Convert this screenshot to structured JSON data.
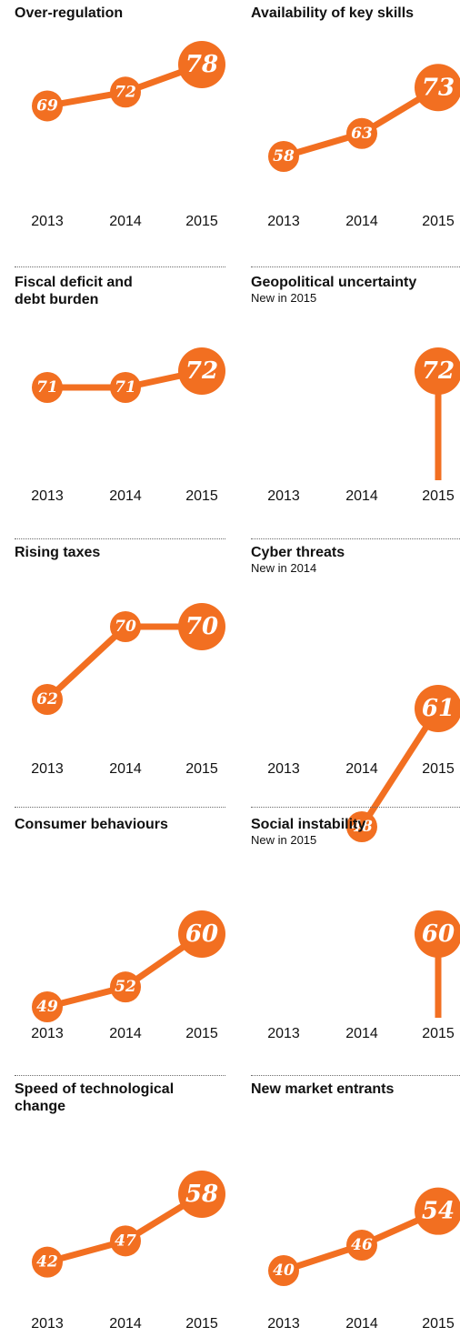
{
  "colors": {
    "accent": "#f26f21",
    "value_text": "#ffffff",
    "label_text": "#111111"
  },
  "years": [
    "2013",
    "2014",
    "2015"
  ],
  "chart_data": [
    {
      "type": "line",
      "title": "Over-regulation",
      "subtitle": "",
      "x": [
        "2013",
        "2014",
        "2015"
      ],
      "values": [
        69,
        72,
        78
      ],
      "labels": [
        "69",
        "72",
        "78"
      ]
    },
    {
      "type": "line",
      "title": "Availability of key skills",
      "subtitle": "",
      "x": [
        "2013",
        "2014",
        "2015"
      ],
      "values": [
        58,
        63,
        73
      ],
      "labels": [
        "58",
        "63",
        "73"
      ]
    },
    {
      "type": "line",
      "title": "Fiscal deficit and debt burden",
      "subtitle": "",
      "x": [
        "2013",
        "2014",
        "2015"
      ],
      "values": [
        71,
        71,
        72
      ],
      "labels": [
        "71",
        "71",
        "72"
      ]
    },
    {
      "type": "line",
      "title": "Geopolitical uncertainty",
      "subtitle": "New in 2015",
      "x": [
        "2013",
        "2014",
        "2015"
      ],
      "values": [
        null,
        null,
        72
      ],
      "labels": [
        "",
        "",
        "72"
      ]
    },
    {
      "type": "line",
      "title": "Rising taxes",
      "subtitle": "",
      "x": [
        "2013",
        "2014",
        "2015"
      ],
      "values": [
        62,
        70,
        70
      ],
      "labels": [
        "62",
        "70",
        "70"
      ]
    },
    {
      "type": "line",
      "title": "Cyber threats",
      "subtitle": "New in 2014",
      "x": [
        "2013",
        "2014",
        "2015"
      ],
      "values": [
        null,
        48,
        61
      ],
      "labels": [
        "",
        "48",
        "61"
      ]
    },
    {
      "type": "line",
      "title": "Consumer behaviours",
      "subtitle": "",
      "x": [
        "2013",
        "2014",
        "2015"
      ],
      "values": [
        49,
        52,
        60
      ],
      "labels": [
        "49",
        "52",
        "60"
      ]
    },
    {
      "type": "line",
      "title": "Social instability",
      "subtitle": "New in 2015",
      "x": [
        "2013",
        "2014",
        "2015"
      ],
      "values": [
        null,
        null,
        60
      ],
      "labels": [
        "",
        "",
        "60"
      ]
    },
    {
      "type": "line",
      "title": "Speed of technological change",
      "subtitle": "",
      "x": [
        "2013",
        "2014",
        "2015"
      ],
      "values": [
        42,
        47,
        58
      ],
      "labels": [
        "42",
        "47",
        "58"
      ]
    },
    {
      "type": "line",
      "title": "New market entrants",
      "subtitle": "",
      "x": [
        "2013",
        "2014",
        "2015"
      ],
      "values": [
        40,
        46,
        54
      ],
      "labels": [
        "40",
        "46",
        "54"
      ]
    }
  ]
}
